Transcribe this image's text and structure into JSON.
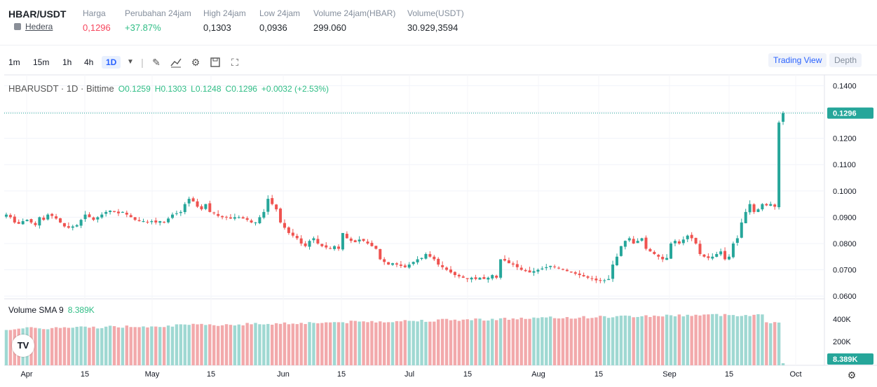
{
  "header": {
    "pair": "HBAR/USDT",
    "coin_name": "Hedera",
    "stats": [
      {
        "label": "Harga",
        "value": "0,1296",
        "color": "red"
      },
      {
        "label": "Perubahan 24jam",
        "value": "+37.87%",
        "color": "green"
      },
      {
        "label": "High 24jam",
        "value": "0,1303",
        "color": "normal"
      },
      {
        "label": "Low 24jam",
        "value": "0,0936",
        "color": "normal"
      },
      {
        "label": "Volume 24jam(HBAR)",
        "value": "299.060",
        "color": "normal"
      },
      {
        "label": "Volume(USDT)",
        "value": "30.929,3594",
        "color": "normal"
      }
    ]
  },
  "toolbar": {
    "timeframes": [
      "1m",
      "15m",
      "1h",
      "4h",
      "1D"
    ],
    "active_timeframe": "1D",
    "tools": [
      "chevron-down-icon",
      "pencil-icon",
      "indicator-icon",
      "gear-icon",
      "save-icon",
      "fullscreen-icon"
    ],
    "trading_view_label": "Trading View",
    "depth_label": "Depth"
  },
  "legend": {
    "symbol": "HBARUSDT · 1D · Bittime",
    "open": "O0.1259",
    "high": "H0.1303",
    "low": "L0.1248",
    "close": "C0.1296",
    "change": "+0.0032 (+2.53%)"
  },
  "volume_legend": {
    "label": "Volume SMA 9",
    "value": "8.389K"
  },
  "colors": {
    "up": "#26a69a",
    "down": "#ef5350",
    "vol_up": "#9fd8d2",
    "vol_down": "#f2a9ab",
    "accent": "#2962ff"
  },
  "chart_data": {
    "type": "candlestick",
    "y_ticks": [
      "0.1400",
      "0.1300",
      "0.1200",
      "0.1100",
      "0.1000",
      "0.0900",
      "0.0800",
      "0.0700",
      "0.0600"
    ],
    "ylim": [
      0.06,
      0.14
    ],
    "last_price_label": "0.1296",
    "volume_ticks": [
      "400K",
      "200K"
    ],
    "last_volume_label": "8.389K",
    "x_labels": [
      "Apr",
      "15",
      "May",
      "15",
      "Jun",
      "15",
      "Jul",
      "15",
      "Aug",
      "15",
      "Sep",
      "15",
      "Oct"
    ],
    "close_series": [
      0.091,
      0.09,
      0.088,
      0.0875,
      0.0885,
      0.089,
      0.088,
      0.087,
      0.09,
      0.089,
      0.091,
      0.0905,
      0.0895,
      0.088,
      0.0865,
      0.086,
      0.0865,
      0.087,
      0.089,
      0.091,
      0.09,
      0.089,
      0.09,
      0.091,
      0.092,
      0.0925,
      0.092,
      0.0915,
      0.092,
      0.091,
      0.09,
      0.089,
      0.0885,
      0.0885,
      0.088,
      0.0885,
      0.088,
      0.0885,
      0.088,
      0.0895,
      0.091,
      0.0915,
      0.092,
      0.095,
      0.097,
      0.096,
      0.094,
      0.093,
      0.095,
      0.092,
      0.0915,
      0.0905,
      0.09,
      0.09,
      0.0895,
      0.09,
      0.09,
      0.0895,
      0.089,
      0.088,
      0.088,
      0.09,
      0.092,
      0.097,
      0.095,
      0.093,
      0.088,
      0.086,
      0.084,
      0.083,
      0.082,
      0.08,
      0.079,
      0.081,
      0.082,
      0.08,
      0.079,
      0.0785,
      0.078,
      0.079,
      0.078,
      0.084,
      0.082,
      0.081,
      0.0805,
      0.0815,
      0.081,
      0.08,
      0.079,
      0.078,
      0.074,
      0.073,
      0.072,
      0.0725,
      0.072,
      0.0715,
      0.071,
      0.072,
      0.073,
      0.074,
      0.0745,
      0.076,
      0.075,
      0.074,
      0.072,
      0.071,
      0.07,
      0.069,
      0.068,
      0.0675,
      0.067,
      0.0665,
      0.067,
      0.0665,
      0.067,
      0.0665,
      0.067,
      0.068,
      0.067,
      0.074,
      0.0735,
      0.0725,
      0.072,
      0.071,
      0.07,
      0.0695,
      0.069,
      0.0695,
      0.07,
      0.0705,
      0.071,
      0.0715,
      0.071,
      0.0705,
      0.07,
      0.0695,
      0.069,
      0.0685,
      0.068,
      0.0675,
      0.067,
      0.0665,
      0.066,
      0.0658,
      0.066,
      0.0665,
      0.072,
      0.075,
      0.079,
      0.081,
      0.082,
      0.08,
      0.081,
      0.082,
      0.078,
      0.077,
      0.076,
      0.075,
      0.074,
      0.0745,
      0.08,
      0.081,
      0.08,
      0.0815,
      0.083,
      0.082,
      0.08,
      0.076,
      0.075,
      0.0745,
      0.075,
      0.076,
      0.077,
      0.074,
      0.075,
      0.08,
      0.082,
      0.088,
      0.092,
      0.095,
      0.092,
      0.093,
      0.095,
      0.0945,
      0.095,
      0.094,
      0.126,
      0.1296
    ]
  }
}
